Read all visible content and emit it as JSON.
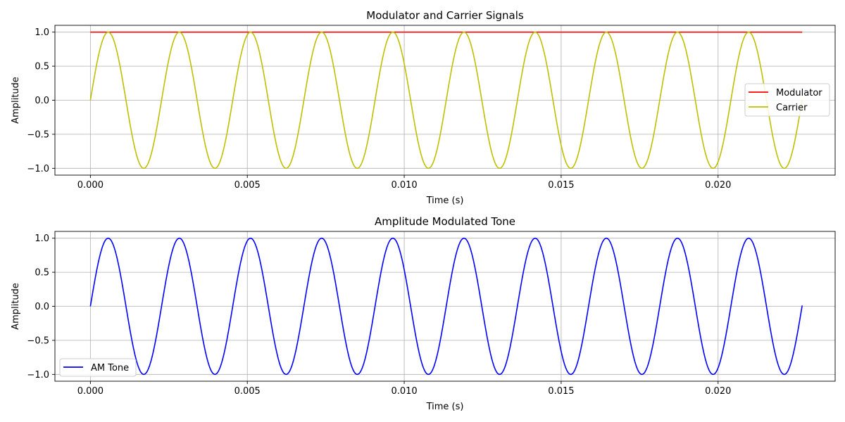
{
  "chart_data": [
    {
      "type": "line",
      "title": "Modulator and Carrier Signals",
      "xlabel": "Time (s)",
      "ylabel": "Amplitude",
      "xlim": [
        -0.00113,
        0.02373
      ],
      "ylim": [
        -1.1,
        1.1
      ],
      "xticks": [
        0.0,
        0.005,
        0.01,
        0.015,
        0.02
      ],
      "xtick_labels": [
        "0.000",
        "0.005",
        "0.010",
        "0.015",
        "0.020"
      ],
      "yticks": [
        -1.0,
        -0.5,
        0.0,
        0.5,
        1.0
      ],
      "ytick_labels": [
        "−1.0",
        "−0.5",
        "0.0",
        "0.5",
        "1.0"
      ],
      "grid": true,
      "legend_position": "center-right",
      "series": [
        {
          "name": "Modulator",
          "color": "#ff0000",
          "function": "constant",
          "value": 1.0,
          "x_range": [
            0.0,
            0.02268
          ]
        },
        {
          "name": "Carrier",
          "color": "#bfbf00",
          "function": "sine",
          "amplitude": 1.0,
          "frequency_hz": 441,
          "x_range": [
            0.0,
            0.02268
          ]
        }
      ]
    },
    {
      "type": "line",
      "title": "Amplitude Modulated Tone",
      "xlabel": "Time (s)",
      "ylabel": "Amplitude",
      "xlim": [
        -0.00113,
        0.02373
      ],
      "ylim": [
        -1.1,
        1.1
      ],
      "xticks": [
        0.0,
        0.005,
        0.01,
        0.015,
        0.02
      ],
      "xtick_labels": [
        "0.000",
        "0.005",
        "0.010",
        "0.015",
        "0.020"
      ],
      "yticks": [
        -1.0,
        -0.5,
        0.0,
        0.5,
        1.0
      ],
      "ytick_labels": [
        "−1.0",
        "−0.5",
        "0.0",
        "0.5",
        "1.0"
      ],
      "grid": true,
      "legend_position": "lower-left",
      "series": [
        {
          "name": "AM Tone",
          "color": "#0000ff",
          "function": "sine",
          "amplitude": 1.0,
          "frequency_hz": 441,
          "x_range": [
            0.0,
            0.02268
          ]
        }
      ]
    }
  ]
}
